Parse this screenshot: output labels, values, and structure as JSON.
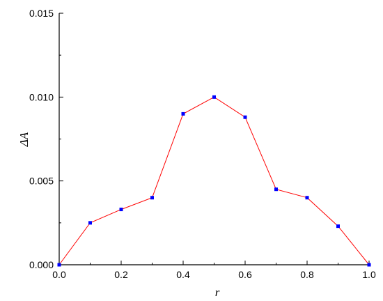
{
  "chart_data": {
    "type": "line",
    "title": "",
    "xlabel": "r",
    "ylabel": "ΔA",
    "xlim": [
      0.0,
      1.0
    ],
    "ylim": [
      0.0,
      0.015
    ],
    "x_ticks": [
      "0.0",
      "0.2",
      "0.4",
      "0.6",
      "0.8",
      "1.0"
    ],
    "y_ticks": [
      "0.000",
      "0.005",
      "0.010",
      "0.015"
    ],
    "grid": false,
    "legend": "none",
    "series": [
      {
        "x": [
          0.0,
          0.1,
          0.2,
          0.3,
          0.4,
          0.5,
          0.6,
          0.7,
          0.8,
          0.9,
          1.0
        ],
        "y": [
          0.0,
          0.0025,
          0.0033,
          0.004,
          0.009,
          0.01,
          0.0088,
          0.0045,
          0.004,
          0.0023,
          0.0
        ],
        "line_color": "#ff0000",
        "marker_color": "#0000ff",
        "marker": "square"
      }
    ]
  }
}
